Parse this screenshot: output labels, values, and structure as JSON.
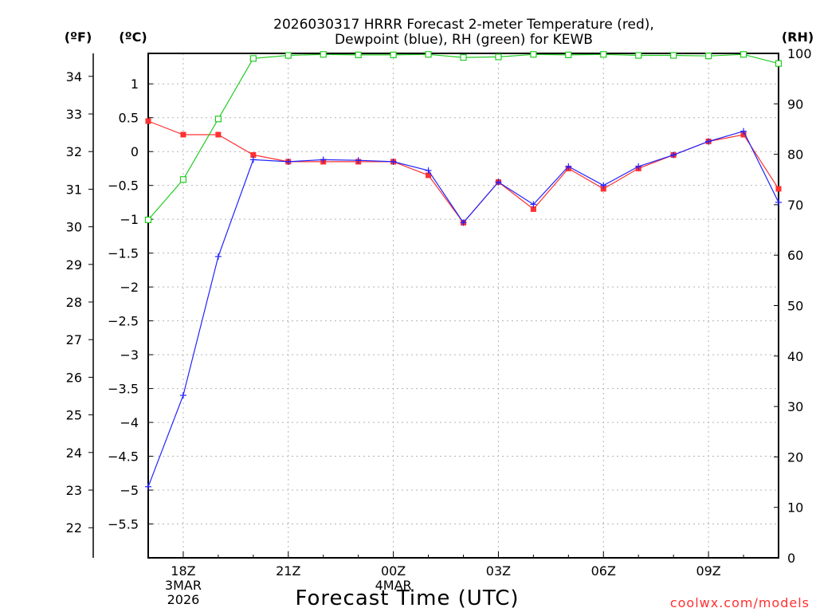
{
  "chart_data": {
    "type": "line",
    "title_line1": "2026030317 HRRR Forecast 2-meter Temperature (red),",
    "title_line2": "Dewpoint (blue), RH (green) for KEWB",
    "xlabel": "Forecast Time (UTC)",
    "credit": "coolwx.com/models",
    "axis_units": {
      "fahrenheit": "(ºF)",
      "celsius": "(ºC)",
      "rh": "(RH)"
    },
    "x_hours": [
      17,
      18,
      19,
      20,
      21,
      22,
      23,
      24,
      25,
      26,
      27,
      28,
      29,
      30,
      31,
      32,
      33,
      34,
      35
    ],
    "xlim": [
      17,
      35
    ],
    "x_ticks": [
      {
        "hour": 18,
        "lines": [
          "18Z",
          "3MAR",
          "2026"
        ]
      },
      {
        "hour": 21,
        "lines": [
          "21Z"
        ]
      },
      {
        "hour": 24,
        "lines": [
          "00Z",
          "4MAR"
        ]
      },
      {
        "hour": 27,
        "lines": [
          "03Z"
        ]
      },
      {
        "hour": 30,
        "lines": [
          "06Z"
        ]
      },
      {
        "hour": 33,
        "lines": [
          "09Z"
        ]
      }
    ],
    "celsius_axis": {
      "ylim": [
        -6,
        1.45
      ],
      "ticks": [
        1,
        0.5,
        0,
        -0.5,
        -1,
        -1.5,
        -2,
        -2.5,
        -3,
        -3.5,
        -4,
        -4.5,
        -5,
        -5.5
      ],
      "tick_labels": [
        "1",
        "0.5",
        "0",
        "−0.5",
        "−1",
        "−1.5",
        "−2",
        "−2.5",
        "−3",
        "−3.5",
        "−4",
        "−4.5",
        "−5",
        "−5.5"
      ]
    },
    "fahrenheit_axis": {
      "ticks": [
        34,
        33,
        32,
        31,
        30,
        29,
        28,
        27,
        26,
        25,
        24,
        23,
        22
      ],
      "tick_labels": [
        "34",
        "33",
        "32",
        "31",
        "30",
        "29",
        "28",
        "27",
        "26",
        "25",
        "24",
        "23",
        "22"
      ]
    },
    "rh_axis": {
      "ylim": [
        0,
        100
      ],
      "ticks": [
        100,
        90,
        80,
        70,
        60,
        50,
        40,
        30,
        20,
        10,
        0
      ],
      "tick_labels": [
        "100",
        "90",
        "80",
        "70",
        "60",
        "50",
        "40",
        "30",
        "20",
        "10",
        "0"
      ]
    },
    "series": [
      {
        "name": "Temperature",
        "unit": "C",
        "color": "#ff3030",
        "marker": "square-filled",
        "values": [
          0.45,
          0.25,
          0.25,
          -0.05,
          -0.15,
          -0.15,
          -0.15,
          -0.15,
          -0.35,
          -1.05,
          -0.45,
          -0.85,
          -0.25,
          -0.55,
          -0.25,
          -0.05,
          0.15,
          0.25,
          -0.55
        ]
      },
      {
        "name": "Dewpoint",
        "unit": "C",
        "color": "#2222ff",
        "marker": "plus",
        "values": [
          -4.95,
          -3.6,
          -1.55,
          -0.12,
          -0.15,
          -0.12,
          -0.13,
          -0.15,
          -0.28,
          -1.05,
          -0.45,
          -0.78,
          -0.22,
          -0.5,
          -0.22,
          -0.05,
          0.15,
          0.3,
          -0.75
        ]
      },
      {
        "name": "RH",
        "unit": "%",
        "color": "#22cc22",
        "marker": "square-open",
        "values": [
          67,
          75,
          87,
          99,
          99.6,
          99.8,
          99.7,
          99.7,
          99.8,
          99.2,
          99.3,
          99.8,
          99.7,
          99.8,
          99.6,
          99.6,
          99.5,
          99.8,
          98
        ]
      }
    ]
  }
}
